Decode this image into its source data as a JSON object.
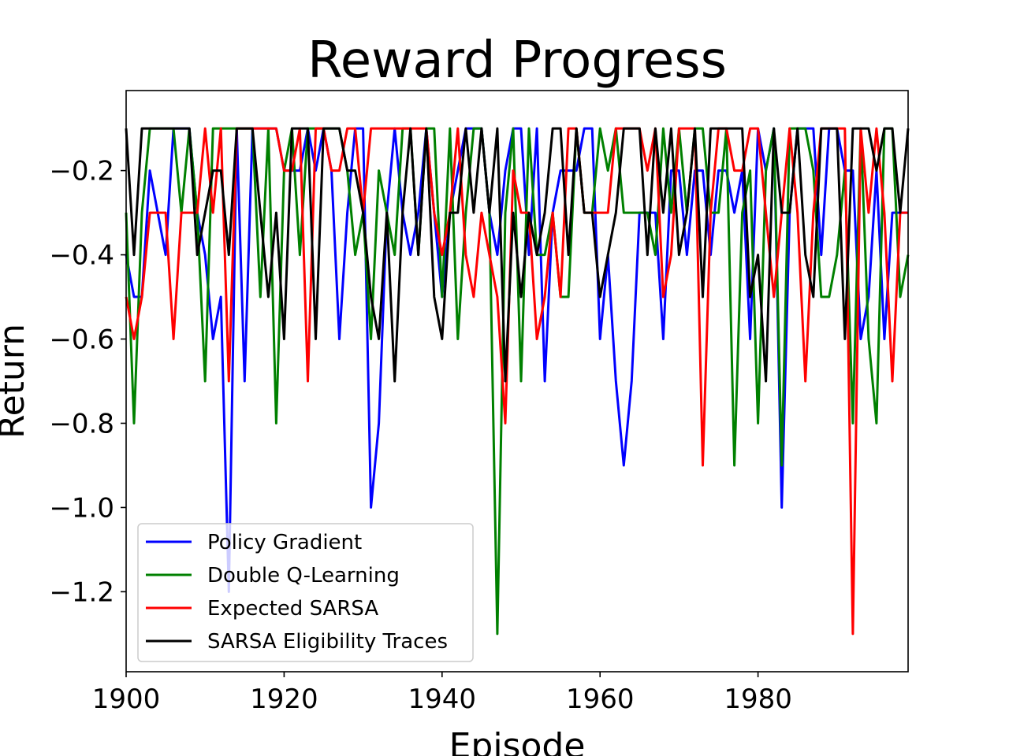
{
  "chart_data": {
    "type": "line",
    "title": "Reward Progress",
    "xlabel": "Episode",
    "ylabel": "Return",
    "xlim": [
      1900,
      1999
    ],
    "ylim": [
      -1.39,
      -0.01
    ],
    "xticks": [
      1900,
      1920,
      1940,
      1960,
      1980
    ],
    "xtick_labels": [
      "1900",
      "1920",
      "1940",
      "1960",
      "1980"
    ],
    "yticks": [
      -1.2,
      -1.0,
      -0.8,
      -0.6,
      -0.4,
      -0.2
    ],
    "ytick_labels": [
      "−1.2",
      "−1.0",
      "−0.8",
      "−0.6",
      "−0.4",
      "−0.2"
    ],
    "grid": false,
    "legend_position": "lower-left",
    "x": [
      1900,
      1901,
      1902,
      1903,
      1904,
      1905,
      1906,
      1907,
      1908,
      1909,
      1910,
      1911,
      1912,
      1913,
      1914,
      1915,
      1916,
      1917,
      1918,
      1919,
      1920,
      1921,
      1922,
      1923,
      1924,
      1925,
      1926,
      1927,
      1928,
      1929,
      1930,
      1931,
      1932,
      1933,
      1934,
      1935,
      1936,
      1937,
      1938,
      1939,
      1940,
      1941,
      1942,
      1943,
      1944,
      1945,
      1946,
      1947,
      1948,
      1949,
      1950,
      1951,
      1952,
      1953,
      1954,
      1955,
      1956,
      1957,
      1958,
      1959,
      1960,
      1961,
      1962,
      1963,
      1964,
      1965,
      1966,
      1967,
      1968,
      1969,
      1970,
      1971,
      1972,
      1973,
      1974,
      1975,
      1976,
      1977,
      1978,
      1979,
      1980,
      1981,
      1982,
      1983,
      1984,
      1985,
      1986,
      1987,
      1988,
      1989,
      1990,
      1991,
      1992,
      1993,
      1994,
      1995,
      1996,
      1997,
      1998,
      1999
    ],
    "series": [
      {
        "name": "Policy Gradient",
        "color": "#0000ff",
        "values": [
          -0.4,
          -0.5,
          -0.5,
          -0.2,
          -0.3,
          -0.4,
          -0.1,
          -0.1,
          -0.1,
          -0.3,
          -0.4,
          -0.6,
          -0.5,
          -1.2,
          -0.1,
          -0.7,
          -0.1,
          -0.1,
          -0.1,
          -0.1,
          -0.2,
          -0.2,
          -0.2,
          -0.1,
          -0.2,
          -0.1,
          -0.2,
          -0.6,
          -0.3,
          -0.1,
          -0.1,
          -1.0,
          -0.8,
          -0.3,
          -0.1,
          -0.3,
          -0.4,
          -0.3,
          -0.1,
          -0.3,
          -0.5,
          -0.3,
          -0.2,
          -0.1,
          -0.1,
          -0.1,
          -0.3,
          -0.4,
          -0.2,
          -0.1,
          -0.1,
          -0.4,
          -0.1,
          -0.7,
          -0.3,
          -0.2,
          -0.2,
          -0.2,
          -0.1,
          -0.1,
          -0.6,
          -0.4,
          -0.7,
          -0.9,
          -0.7,
          -0.3,
          -0.3,
          -0.3,
          -0.6,
          -0.2,
          -0.2,
          -0.4,
          -0.2,
          -0.2,
          -0.4,
          -0.2,
          -0.2,
          -0.3,
          -0.2,
          -0.6,
          -0.1,
          -0.2,
          -0.1,
          -1.0,
          -0.3,
          -0.1,
          -0.1,
          -0.1,
          -0.4,
          -0.1,
          -0.1,
          -0.2,
          -0.2,
          -0.6,
          -0.5,
          -0.2,
          -0.6,
          -0.3,
          -0.3,
          -0.3
        ]
      },
      {
        "name": "Double Q-Learning",
        "color": "#008000",
        "values": [
          -0.3,
          -0.8,
          -0.3,
          -0.1,
          -0.1,
          -0.1,
          -0.1,
          -0.3,
          -0.1,
          -0.3,
          -0.7,
          -0.1,
          -0.1,
          -0.1,
          -0.1,
          -0.1,
          -0.1,
          -0.5,
          -0.1,
          -0.8,
          -0.2,
          -0.1,
          -0.4,
          -0.1,
          -0.1,
          -0.1,
          -0.1,
          -0.1,
          -0.2,
          -0.4,
          -0.3,
          -0.6,
          -0.2,
          -0.3,
          -0.4,
          -0.1,
          -0.1,
          -0.4,
          -0.1,
          -0.1,
          -0.5,
          -0.1,
          -0.6,
          -0.3,
          -0.1,
          -0.1,
          -0.3,
          -1.3,
          -0.3,
          -0.1,
          -0.7,
          -0.1,
          -0.4,
          -0.4,
          -0.3,
          -0.5,
          -0.5,
          -0.1,
          -0.3,
          -0.3,
          -0.1,
          -0.2,
          -0.1,
          -0.3,
          -0.3,
          -0.3,
          -0.3,
          -0.4,
          -0.1,
          -0.3,
          -0.1,
          -0.3,
          -0.1,
          -0.1,
          -0.3,
          -0.3,
          -0.1,
          -0.9,
          -0.3,
          -0.2,
          -0.8,
          -0.2,
          -0.1,
          -0.9,
          -0.1,
          -0.1,
          -0.1,
          -0.2,
          -0.5,
          -0.5,
          -0.4,
          -0.2,
          -0.8,
          -0.1,
          -0.6,
          -0.8,
          -0.1,
          -0.1,
          -0.5,
          -0.4
        ]
      },
      {
        "name": "Expected SARSA",
        "color": "#ff0000",
        "values": [
          -0.5,
          -0.6,
          -0.5,
          -0.3,
          -0.3,
          -0.3,
          -0.6,
          -0.3,
          -0.3,
          -0.3,
          -0.1,
          -0.3,
          -0.1,
          -0.7,
          -0.1,
          -0.1,
          -0.1,
          -0.1,
          -0.1,
          -0.1,
          -0.2,
          -0.2,
          -0.1,
          -0.7,
          -0.1,
          -0.1,
          -0.2,
          -0.2,
          -0.1,
          -0.1,
          -0.3,
          -0.1,
          -0.1,
          -0.1,
          -0.1,
          -0.1,
          -0.1,
          -0.1,
          -0.1,
          -0.3,
          -0.4,
          -0.3,
          -0.1,
          -0.4,
          -0.5,
          -0.3,
          -0.4,
          -0.5,
          -0.8,
          -0.2,
          -0.3,
          -0.3,
          -0.6,
          -0.5,
          -0.3,
          -0.5,
          -0.1,
          -0.1,
          -0.3,
          -0.3,
          -0.3,
          -0.3,
          -0.1,
          -0.1,
          -0.1,
          -0.1,
          -0.2,
          -0.1,
          -0.5,
          -0.4,
          -0.1,
          -0.1,
          -0.1,
          -0.9,
          -0.3,
          -0.1,
          -0.1,
          -0.2,
          -0.2,
          -0.1,
          -0.1,
          -0.3,
          -0.5,
          -0.3,
          -0.1,
          -0.3,
          -0.7,
          -0.3,
          -0.1,
          -0.1,
          -0.1,
          -0.1,
          -1.3,
          -0.1,
          -0.3,
          -0.1,
          -0.3,
          -0.7,
          -0.3,
          -0.3
        ]
      },
      {
        "name": "SARSA Eligibility Traces",
        "color": "#000000",
        "values": [
          -0.1,
          -0.4,
          -0.1,
          -0.1,
          -0.1,
          -0.1,
          -0.1,
          -0.1,
          -0.1,
          -0.4,
          -0.3,
          -0.2,
          -0.2,
          -0.4,
          -0.1,
          -0.1,
          -0.1,
          -0.3,
          -0.5,
          -0.3,
          -0.6,
          -0.1,
          -0.1,
          -0.1,
          -0.6,
          -0.1,
          -0.1,
          -0.1,
          -0.2,
          -0.2,
          -0.3,
          -0.5,
          -0.6,
          -0.3,
          -0.7,
          -0.3,
          -0.1,
          -0.4,
          -0.1,
          -0.5,
          -0.6,
          -0.3,
          -0.3,
          -0.1,
          -0.3,
          -0.1,
          -0.3,
          -0.1,
          -0.7,
          -0.3,
          -0.5,
          -0.3,
          -0.4,
          -0.3,
          -0.1,
          -0.1,
          -0.4,
          -0.1,
          -0.3,
          -0.3,
          -0.5,
          -0.4,
          -0.3,
          -0.1,
          -0.1,
          -0.1,
          -0.4,
          -0.1,
          -0.3,
          -0.1,
          -0.4,
          -0.3,
          -0.1,
          -0.5,
          -0.1,
          -0.1,
          -0.1,
          -0.1,
          -0.1,
          -0.5,
          -0.4,
          -0.7,
          -0.1,
          -0.3,
          -0.3,
          -0.1,
          -0.4,
          -0.5,
          -0.1,
          -0.1,
          -0.1,
          -0.6,
          -0.1,
          -0.1,
          -0.1,
          -0.2,
          -0.1,
          -0.1,
          -0.3,
          -0.1
        ]
      }
    ]
  }
}
